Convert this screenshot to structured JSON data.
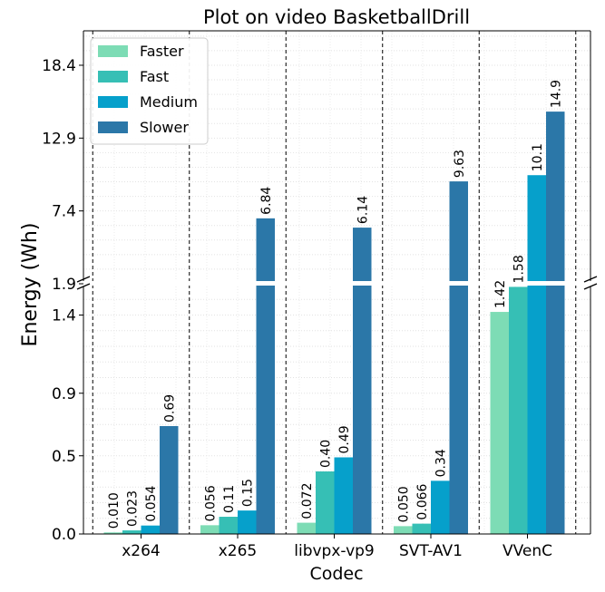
{
  "chart_data": {
    "type": "bar",
    "title": "Plot on video BasketballDrill",
    "xlabel": "Codec",
    "ylabel": "Energy (Wh)",
    "categories": [
      "x264",
      "x265",
      "libvpx-vp9",
      "SVT-AV1",
      "VVenC"
    ],
    "series": [
      {
        "name": "Faster",
        "color": "#7ddcb5",
        "values": [
          0.01,
          0.056,
          0.072,
          0.05,
          1.42
        ],
        "labels": [
          "0.010",
          "0.056",
          "0.072",
          "0.050",
          "1.42"
        ]
      },
      {
        "name": "Fast",
        "color": "#36bfb5",
        "values": [
          0.023,
          0.11,
          0.4,
          0.066,
          1.58
        ],
        "labels": [
          "0.023",
          "0.11",
          "0.40",
          "0.066",
          "1.58"
        ]
      },
      {
        "name": "Medium",
        "color": "#06a0cb",
        "values": [
          0.054,
          0.15,
          0.49,
          0.34,
          10.1
        ],
        "labels": [
          "0.054",
          "0.15",
          "0.49",
          "0.34",
          "10.1"
        ]
      },
      {
        "name": "Slower",
        "color": "#2b77a8",
        "values": [
          0.69,
          6.84,
          6.14,
          9.63,
          14.9
        ],
        "labels": [
          "0.69",
          "6.84",
          "6.14",
          "9.63",
          "14.9"
        ]
      }
    ],
    "broken_axis": {
      "lower_range": [
        0.0,
        1.6
      ],
      "upper_range": [
        1.9,
        21.0
      ],
      "lower_ticks": [
        "0.0",
        "0.5",
        "0.9",
        "1.4"
      ],
      "lower_tick_values": [
        0.0,
        0.5,
        0.9,
        1.4
      ],
      "upper_ticks": [
        "1.9",
        "7.4",
        "12.9",
        "18.4"
      ],
      "upper_tick_values": [
        1.9,
        7.4,
        12.9,
        18.4
      ]
    },
    "grid": true,
    "legend_position": "top-left"
  }
}
